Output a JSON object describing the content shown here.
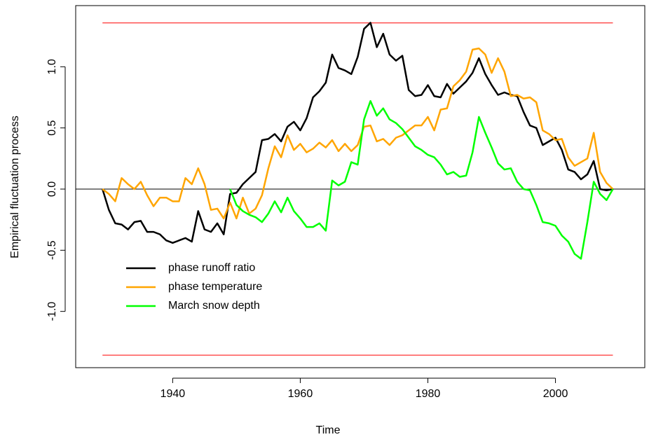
{
  "chart_data": {
    "type": "line",
    "x_label": "Time",
    "y_label": "Empirical fluctuation process",
    "xlim": [
      1924.8,
      2014.0
    ],
    "ylim": [
      -1.46,
      1.5
    ],
    "xticks": [
      1940,
      1960,
      1980,
      2000
    ],
    "yticks": [
      {
        "value": -1.0,
        "label": "-1.0"
      },
      {
        "value": -0.5,
        "label": "-0.5"
      },
      {
        "value": 0.0,
        "label": "0.0"
      },
      {
        "value": 0.5,
        "label": "0.5"
      },
      {
        "value": 1.0,
        "label": "1.0"
      }
    ],
    "boundaries": [
      1.358,
      -1.358
    ],
    "boundary_color": "#ff0000",
    "reference_line": 0,
    "x": [
      1929,
      1930,
      1931,
      1932,
      1933,
      1934,
      1935,
      1936,
      1937,
      1938,
      1939,
      1940,
      1941,
      1942,
      1943,
      1944,
      1945,
      1946,
      1947,
      1948,
      1949,
      1950,
      1951,
      1952,
      1953,
      1954,
      1955,
      1956,
      1957,
      1958,
      1959,
      1960,
      1961,
      1962,
      1963,
      1964,
      1965,
      1966,
      1967,
      1968,
      1969,
      1970,
      1971,
      1972,
      1973,
      1974,
      1975,
      1976,
      1977,
      1978,
      1979,
      1980,
      1981,
      1982,
      1983,
      1984,
      1985,
      1986,
      1987,
      1988,
      1989,
      1990,
      1991,
      1992,
      1993,
      1994,
      1995,
      1996,
      1997,
      1998,
      1999,
      2000,
      2001,
      2002,
      2003,
      2004,
      2005,
      2006,
      2007,
      2008,
      2009
    ],
    "series": [
      {
        "name": "phase runoff ratio",
        "color": "#000000",
        "values": [
          0,
          -0.17,
          -0.28,
          -0.29,
          -0.33,
          -0.27,
          -0.26,
          -0.35,
          -0.35,
          -0.37,
          -0.42,
          -0.44,
          -0.42,
          -0.4,
          -0.43,
          -0.18,
          -0.33,
          -0.35,
          -0.28,
          -0.37,
          -0.04,
          -0.03,
          0.04,
          0.09,
          0.14,
          0.4,
          0.41,
          0.45,
          0.39,
          0.51,
          0.55,
          0.48,
          0.58,
          0.75,
          0.8,
          0.87,
          1.1,
          0.99,
          0.97,
          0.94,
          1.08,
          1.31,
          1.36,
          1.16,
          1.27,
          1.1,
          1.05,
          1.09,
          0.81,
          0.76,
          0.77,
          0.85,
          0.76,
          0.75,
          0.86,
          0.78,
          0.83,
          0.88,
          0.95,
          1.07,
          0.94,
          0.85,
          0.77,
          0.79,
          0.77,
          0.76,
          0.63,
          0.52,
          0.5,
          0.36,
          0.39,
          0.42,
          0.32,
          0.16,
          0.14,
          0.08,
          0.12,
          0.23,
          0.0,
          -0.01,
          0
        ]
      },
      {
        "name": "phase temperature",
        "color": "#ffa500",
        "values": [
          0,
          -0.04,
          -0.1,
          0.09,
          0.04,
          0.0,
          0.06,
          -0.05,
          -0.14,
          -0.07,
          -0.07,
          -0.1,
          -0.1,
          0.09,
          0.04,
          0.17,
          0.04,
          -0.17,
          -0.16,
          -0.24,
          -0.11,
          -0.24,
          -0.07,
          -0.2,
          -0.16,
          -0.05,
          0.17,
          0.35,
          0.26,
          0.44,
          0.32,
          0.37,
          0.3,
          0.33,
          0.38,
          0.34,
          0.4,
          0.31,
          0.37,
          0.31,
          0.36,
          0.51,
          0.52,
          0.39,
          0.41,
          0.36,
          0.42,
          0.44,
          0.48,
          0.52,
          0.52,
          0.59,
          0.48,
          0.65,
          0.66,
          0.84,
          0.89,
          0.96,
          1.14,
          1.15,
          1.1,
          0.95,
          1.07,
          0.96,
          0.76,
          0.77,
          0.74,
          0.75,
          0.71,
          0.48,
          0.45,
          0.4,
          0.41,
          0.26,
          0.19,
          0.22,
          0.25,
          0.46,
          0.14,
          0.05,
          0
        ]
      },
      {
        "name": "March snow depth",
        "color": "#00ff00",
        "values": [
          null,
          null,
          null,
          null,
          null,
          null,
          null,
          null,
          null,
          null,
          null,
          null,
          null,
          null,
          null,
          null,
          null,
          null,
          null,
          null,
          0,
          -0.13,
          -0.18,
          -0.21,
          -0.23,
          -0.27,
          -0.2,
          -0.1,
          -0.19,
          -0.07,
          -0.18,
          -0.24,
          -0.31,
          -0.31,
          -0.28,
          -0.34,
          0.07,
          0.03,
          0.06,
          0.22,
          0.2,
          0.57,
          0.72,
          0.6,
          0.66,
          0.57,
          0.54,
          0.49,
          0.42,
          0.35,
          0.32,
          0.28,
          0.26,
          0.2,
          0.12,
          0.14,
          0.1,
          0.11,
          0.3,
          0.59,
          0.46,
          0.34,
          0.21,
          0.16,
          0.17,
          0.06,
          0.0,
          -0.01,
          -0.13,
          -0.27,
          -0.28,
          -0.3,
          -0.38,
          -0.43,
          -0.53,
          -0.57,
          -0.27,
          0.06,
          -0.04,
          -0.09,
          0
        ]
      }
    ],
    "legend": "bottom-left"
  }
}
